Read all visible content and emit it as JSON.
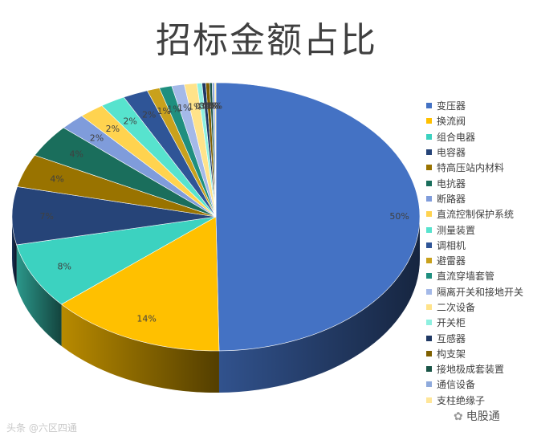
{
  "chart_data": {
    "type": "pie",
    "title": "招标金额占比",
    "categories": [
      "变压器",
      "换流阀",
      "组合电器",
      "电容器",
      "特高压站内材料",
      "电抗器",
      "断路器",
      "直流控制保护系统",
      "测量装置",
      "调相机",
      "避雷器",
      "直流穿墙套管",
      "隔离开关和接地开关",
      "二次设备",
      "开关柜",
      "互感器",
      "构支架",
      "接地极成套装置",
      "通信设备",
      "支柱绝缘子"
    ],
    "values": [
      50,
      14,
      8,
      7,
      4,
      4,
      2,
      2,
      2,
      2,
      1,
      1,
      1,
      1,
      0.4,
      0.3,
      0.3,
      0.2,
      0.2,
      0.1
    ],
    "data_labels": [
      "50%",
      "14%",
      "8%",
      "7%",
      "4%",
      "4%",
      "2%",
      "2%",
      "2%",
      "2%",
      "1%",
      "1%",
      "1%",
      "1%",
      "0%",
      "0%",
      "0%",
      "0%",
      "0%",
      "0%"
    ],
    "colors": [
      "#4472C4",
      "#FFC000",
      "#3CD2C0",
      "#264478",
      "#997300",
      "#1A6E5C",
      "#7F9CDB",
      "#FFD34F",
      "#57E3CE",
      "#2F5597",
      "#C9A11C",
      "#1F8F7F",
      "#A4B9E8",
      "#FFE38A",
      "#8EF0E0",
      "#1F3864",
      "#7F6000",
      "#195446",
      "#8FAADC",
      "#FFE699"
    ],
    "legend_position": "right",
    "three_d": true
  },
  "watermarks": {
    "left": "头条 @六区四通",
    "right": "电股通"
  }
}
